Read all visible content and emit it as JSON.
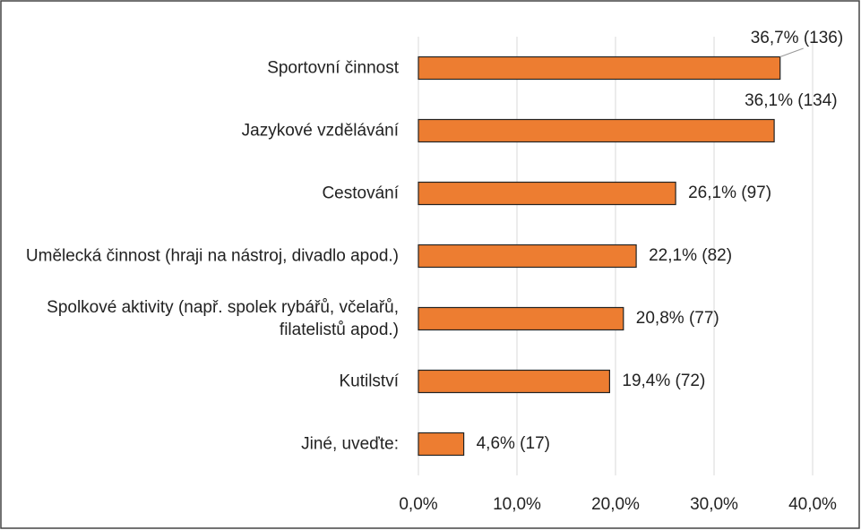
{
  "chart_data": {
    "type": "bar",
    "orientation": "horizontal",
    "categories": [
      "Sportovní činnost",
      "Jazykové vzdělávání",
      "Cestování",
      "Umělecká činnost (hraji na nástroj, divadlo apod.)",
      "Spolkové aktivity (např. spolek rybářů, včelařů, filatelistů apod.)",
      "Kutilství",
      "Jiné, uveďte:"
    ],
    "values": [
      36.7,
      36.1,
      26.1,
      22.1,
      20.8,
      19.4,
      4.6
    ],
    "value_labels": [
      "36,7% (136)",
      "36,1% (134)",
      "26,1% (97)",
      "22,1% (82)",
      "20,8% (77)",
      "19,4% (72)",
      "4,6% (17)"
    ],
    "color": "#ed7d31",
    "xlim": [
      0,
      40
    ],
    "xticks": [
      {
        "value": 0,
        "label": "0,0%"
      },
      {
        "value": 10,
        "label": "10,0%"
      },
      {
        "value": 20,
        "label": "20,0%"
      },
      {
        "value": 30,
        "label": "30,0%"
      },
      {
        "value": 40,
        "label": "40,0%"
      }
    ],
    "grid": true
  }
}
